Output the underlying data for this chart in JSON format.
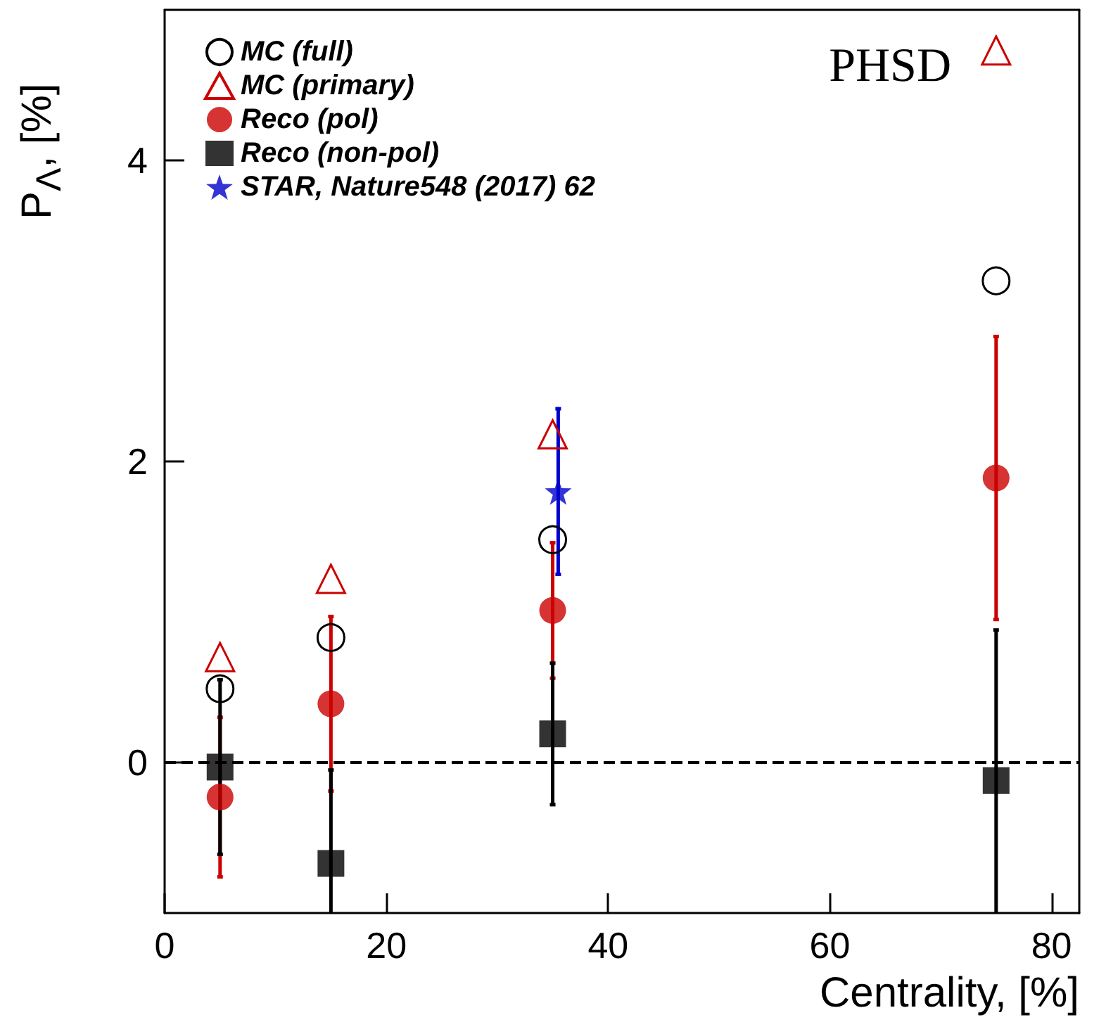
{
  "chart_data": {
    "type": "scatter",
    "xlabel": "Centrality, [%]",
    "ylabel": "P$_{Λ}$, [%]",
    "xlim": [
      0,
      82.5
    ],
    "ylim": [
      -1,
      5
    ],
    "xticks": [
      0,
      20,
      40,
      60,
      80
    ],
    "yticks": [
      0,
      2,
      4
    ],
    "grid": false,
    "legend": "top left",
    "annotations": [
      "PHSD"
    ],
    "ref_lines": [
      {
        "axis": "y",
        "value": 0,
        "label": null,
        "color": "#000000",
        "line_style": "dashed"
      }
    ],
    "series": [
      {
        "name": "MC (full)",
        "color": "#000000",
        "marker": "circle",
        "x": [
          5,
          15,
          35,
          75
        ],
        "values": [
          0.49,
          0.83,
          1.48,
          3.2
        ]
      },
      {
        "name": "MC (primary)",
        "color": "#cc0000",
        "marker": "triangle",
        "x": [
          5,
          15,
          35,
          75
        ],
        "values": [
          0.7,
          1.22,
          2.18,
          4.73
        ]
      },
      {
        "name": "Reco (pol)",
        "color": "#cc0000",
        "marker": "circle",
        "x": [
          5,
          15,
          35,
          75
        ],
        "values": [
          -0.23,
          0.39,
          1.01,
          1.89
        ],
        "errors": [
          0.53,
          0.58,
          0.45,
          0.94
        ]
      },
      {
        "name": "Reco (non-pol)",
        "color": "#000000",
        "marker": "square",
        "x": [
          5,
          15,
          35,
          75
        ],
        "values": [
          -0.03,
          -0.67,
          0.19,
          -0.12
        ],
        "errors": [
          0.58,
          0.62,
          0.47,
          1.0
        ]
      },
      {
        "name": "STAR, Nature548 (2017) 62",
        "color": "#0000cc",
        "marker": "star",
        "x": [
          35.5
        ],
        "values": [
          1.8
        ],
        "errors": [
          0.55
        ]
      }
    ]
  }
}
